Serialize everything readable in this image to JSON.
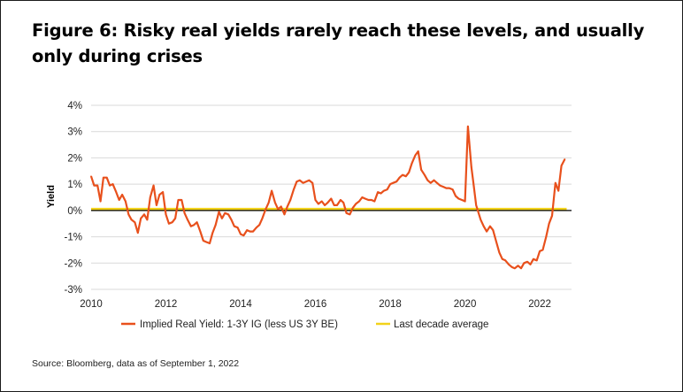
{
  "title": "Figure 6: Risky real yields rarely reach these levels, and usually only during crises",
  "source": "Source: Bloomberg, data as of September 1, 2022",
  "colors": {
    "series_line": "#e8501c",
    "average_line": "#f2d21a",
    "zero_line": "#000000",
    "grid": "#d9d9d9"
  },
  "chart_data": {
    "type": "line",
    "ylabel": "Yield",
    "xlabel": "",
    "y_tick_labels": [
      "4%",
      "3%",
      "2%",
      "1%",
      "0%",
      "-1%",
      "-2%",
      "-3%"
    ],
    "y_tick_values": [
      4,
      3,
      2,
      1,
      0,
      -1,
      -2,
      -3
    ],
    "x_tick_labels": [
      "2010",
      "2012",
      "2014",
      "2016",
      "2018",
      "2020",
      "2022"
    ],
    "x_tick_values": [
      2010,
      2012,
      2014,
      2016,
      2018,
      2020,
      2022
    ],
    "xlim": [
      2010,
      2022.85
    ],
    "ylim": [
      -3,
      4
    ],
    "grid": true,
    "legend_position": "bottom",
    "series": [
      {
        "name": "Implied Real Yield: 1-3Y IG (less US 3Y BE)",
        "color": "#e8501c",
        "x": [
          2010.0,
          2010.08,
          2010.17,
          2010.25,
          2010.33,
          2010.42,
          2010.5,
          2010.58,
          2010.67,
          2010.75,
          2010.83,
          2010.92,
          2011.0,
          2011.08,
          2011.17,
          2011.25,
          2011.33,
          2011.42,
          2011.5,
          2011.58,
          2011.67,
          2011.75,
          2011.83,
          2011.92,
          2012.0,
          2012.08,
          2012.17,
          2012.25,
          2012.33,
          2012.42,
          2012.5,
          2012.58,
          2012.67,
          2012.75,
          2012.83,
          2012.92,
          2013.0,
          2013.08,
          2013.17,
          2013.25,
          2013.33,
          2013.42,
          2013.5,
          2013.58,
          2013.67,
          2013.75,
          2013.83,
          2013.92,
          2014.0,
          2014.08,
          2014.17,
          2014.25,
          2014.33,
          2014.42,
          2014.5,
          2014.58,
          2014.67,
          2014.75,
          2014.83,
          2014.92,
          2015.0,
          2015.08,
          2015.17,
          2015.25,
          2015.33,
          2015.42,
          2015.5,
          2015.58,
          2015.67,
          2015.75,
          2015.83,
          2015.92,
          2016.0,
          2016.08,
          2016.17,
          2016.25,
          2016.33,
          2016.42,
          2016.5,
          2016.58,
          2016.67,
          2016.75,
          2016.83,
          2016.92,
          2017.0,
          2017.08,
          2017.17,
          2017.25,
          2017.33,
          2017.42,
          2017.5,
          2017.58,
          2017.67,
          2017.75,
          2017.83,
          2017.92,
          2018.0,
          2018.08,
          2018.17,
          2018.25,
          2018.33,
          2018.42,
          2018.5,
          2018.58,
          2018.67,
          2018.75,
          2018.83,
          2018.92,
          2019.0,
          2019.08,
          2019.17,
          2019.25,
          2019.33,
          2019.42,
          2019.5,
          2019.58,
          2019.67,
          2019.75,
          2019.83,
          2019.92,
          2020.0,
          2020.08,
          2020.17,
          2020.22,
          2020.3,
          2020.42,
          2020.5,
          2020.58,
          2020.67,
          2020.75,
          2020.83,
          2020.92,
          2021.0,
          2021.08,
          2021.17,
          2021.25,
          2021.33,
          2021.42,
          2021.5,
          2021.58,
          2021.67,
          2021.75,
          2021.83,
          2021.92,
          2022.0,
          2022.08,
          2022.17,
          2022.25,
          2022.33,
          2022.42,
          2022.5,
          2022.58,
          2022.67
        ],
        "y": [
          1.3,
          0.95,
          0.95,
          0.35,
          1.25,
          1.25,
          0.95,
          1.0,
          0.7,
          0.4,
          0.6,
          0.35,
          -0.15,
          -0.35,
          -0.45,
          -0.85,
          -0.3,
          -0.15,
          -0.35,
          0.5,
          0.95,
          0.2,
          0.6,
          0.7,
          -0.15,
          -0.5,
          -0.45,
          -0.3,
          0.4,
          0.4,
          -0.1,
          -0.35,
          -0.6,
          -0.55,
          -0.45,
          -0.8,
          -1.15,
          -1.2,
          -1.25,
          -0.85,
          -0.55,
          -0.05,
          -0.3,
          -0.1,
          -0.15,
          -0.35,
          -0.6,
          -0.65,
          -0.9,
          -0.95,
          -0.75,
          -0.8,
          -0.8,
          -0.65,
          -0.55,
          -0.3,
          0.05,
          0.3,
          0.75,
          0.3,
          0.05,
          0.15,
          -0.15,
          0.15,
          0.4,
          0.8,
          1.1,
          1.15,
          1.05,
          1.1,
          1.15,
          1.05,
          0.4,
          0.25,
          0.35,
          0.2,
          0.3,
          0.45,
          0.2,
          0.2,
          0.4,
          0.3,
          -0.1,
          -0.15,
          0.1,
          0.25,
          0.35,
          0.5,
          0.45,
          0.4,
          0.4,
          0.35,
          0.7,
          0.65,
          0.75,
          0.8,
          1.0,
          1.05,
          1.1,
          1.25,
          1.35,
          1.3,
          1.45,
          1.8,
          2.1,
          2.25,
          1.55,
          1.35,
          1.15,
          1.05,
          1.15,
          1.05,
          0.95,
          0.9,
          0.85,
          0.85,
          0.8,
          0.55,
          0.45,
          0.4,
          0.35,
          3.2,
          1.65,
          1.1,
          0.2,
          -0.35,
          -0.6,
          -0.8,
          -0.6,
          -0.75,
          -1.15,
          -1.6,
          -1.85,
          -1.9,
          -2.05,
          -2.15,
          -2.2,
          -2.1,
          -2.2,
          -2.0,
          -1.95,
          -2.05,
          -1.85,
          -1.9,
          -1.55,
          -1.5,
          -1.0,
          -0.5,
          -0.2,
          1.05,
          0.75,
          1.7,
          1.95
        ]
      },
      {
        "name": "Last decade average",
        "color": "#f2d21a",
        "x": [
          2010,
          2022.72
        ],
        "y": [
          0.05,
          0.05
        ]
      }
    ]
  }
}
